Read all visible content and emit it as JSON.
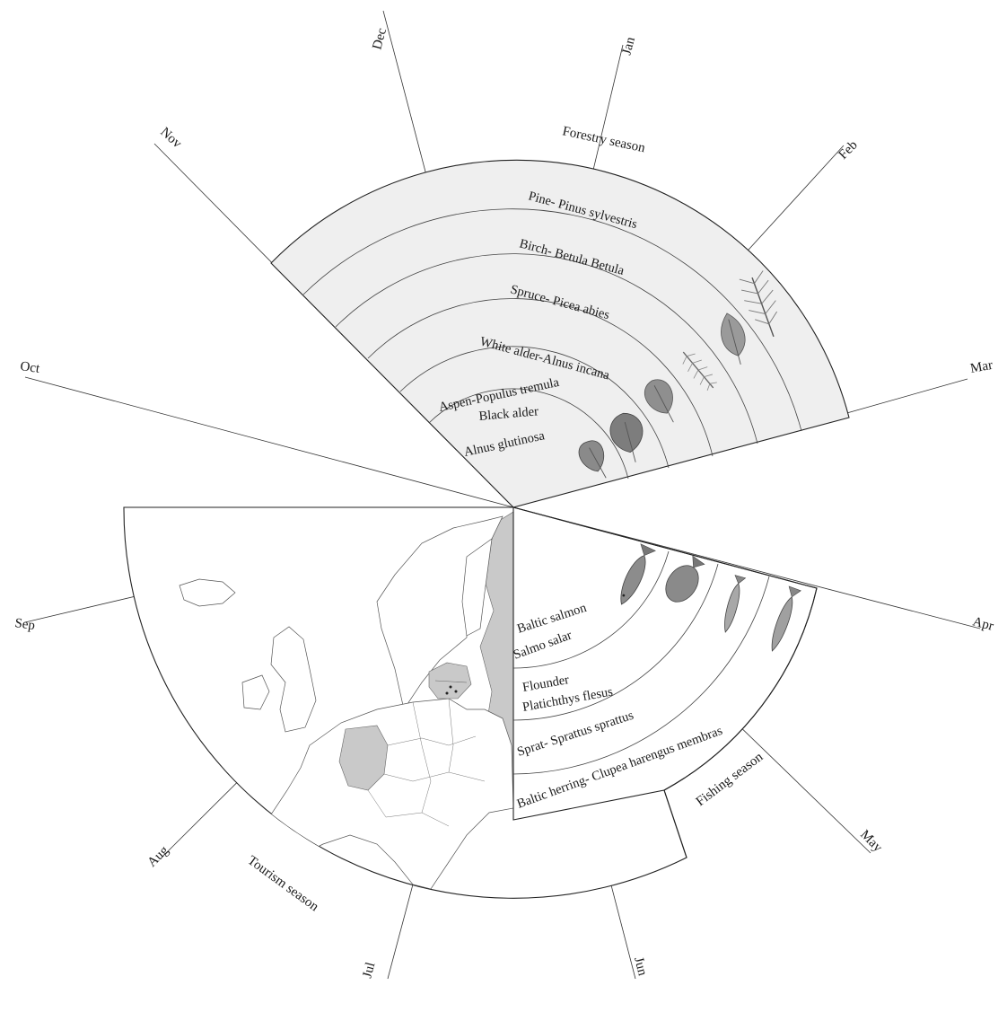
{
  "months": [
    {
      "label": "Jan"
    },
    {
      "label": "Feb"
    },
    {
      "label": "Mar"
    },
    {
      "label": "Apr"
    },
    {
      "label": "May"
    },
    {
      "label": "Jun"
    },
    {
      "label": "Jul"
    },
    {
      "label": "Aug"
    },
    {
      "label": "Sep"
    },
    {
      "label": "Oct"
    },
    {
      "label": "Nov"
    },
    {
      "label": "Dec"
    }
  ],
  "forestry": {
    "title": "Forestry season",
    "species": [
      {
        "label": "Pine- Pinus sylvestris",
        "icon": "pine-branch-icon"
      },
      {
        "label": "Birch- Betula Betula",
        "icon": "birch-leaf-icon"
      },
      {
        "label": "Spruce- Picea abies",
        "icon": "spruce-branch-icon"
      },
      {
        "label": "White alder-Alnus incana",
        "icon": "white-alder-leaf-icon"
      },
      {
        "label": "Aspen-Populus tremula",
        "icon": "aspen-leaf-icon"
      },
      {
        "label": "Black alder",
        "label2": "Alnus glutinosa",
        "icon": "black-alder-leaf-icon"
      }
    ]
  },
  "fishing": {
    "title": "Fishing season",
    "species": [
      {
        "label": "Baltic salmon",
        "label2": "Salmo salar",
        "icon": "salmon-icon"
      },
      {
        "label": "Flounder",
        "label2": "Platichthys flesus",
        "icon": "flounder-icon"
      },
      {
        "label": "Sprat- Sprattus sprattus",
        "icon": "sprat-icon"
      },
      {
        "label": "Baltic herring- Clupea harengus membras",
        "icon": "herring-icon"
      }
    ]
  },
  "tourism": {
    "title": "Tourism season",
    "map": "europe-map-icon"
  },
  "colors": {
    "forestry_fill": "#efefef",
    "map_highlight": "#c9c9c9"
  }
}
